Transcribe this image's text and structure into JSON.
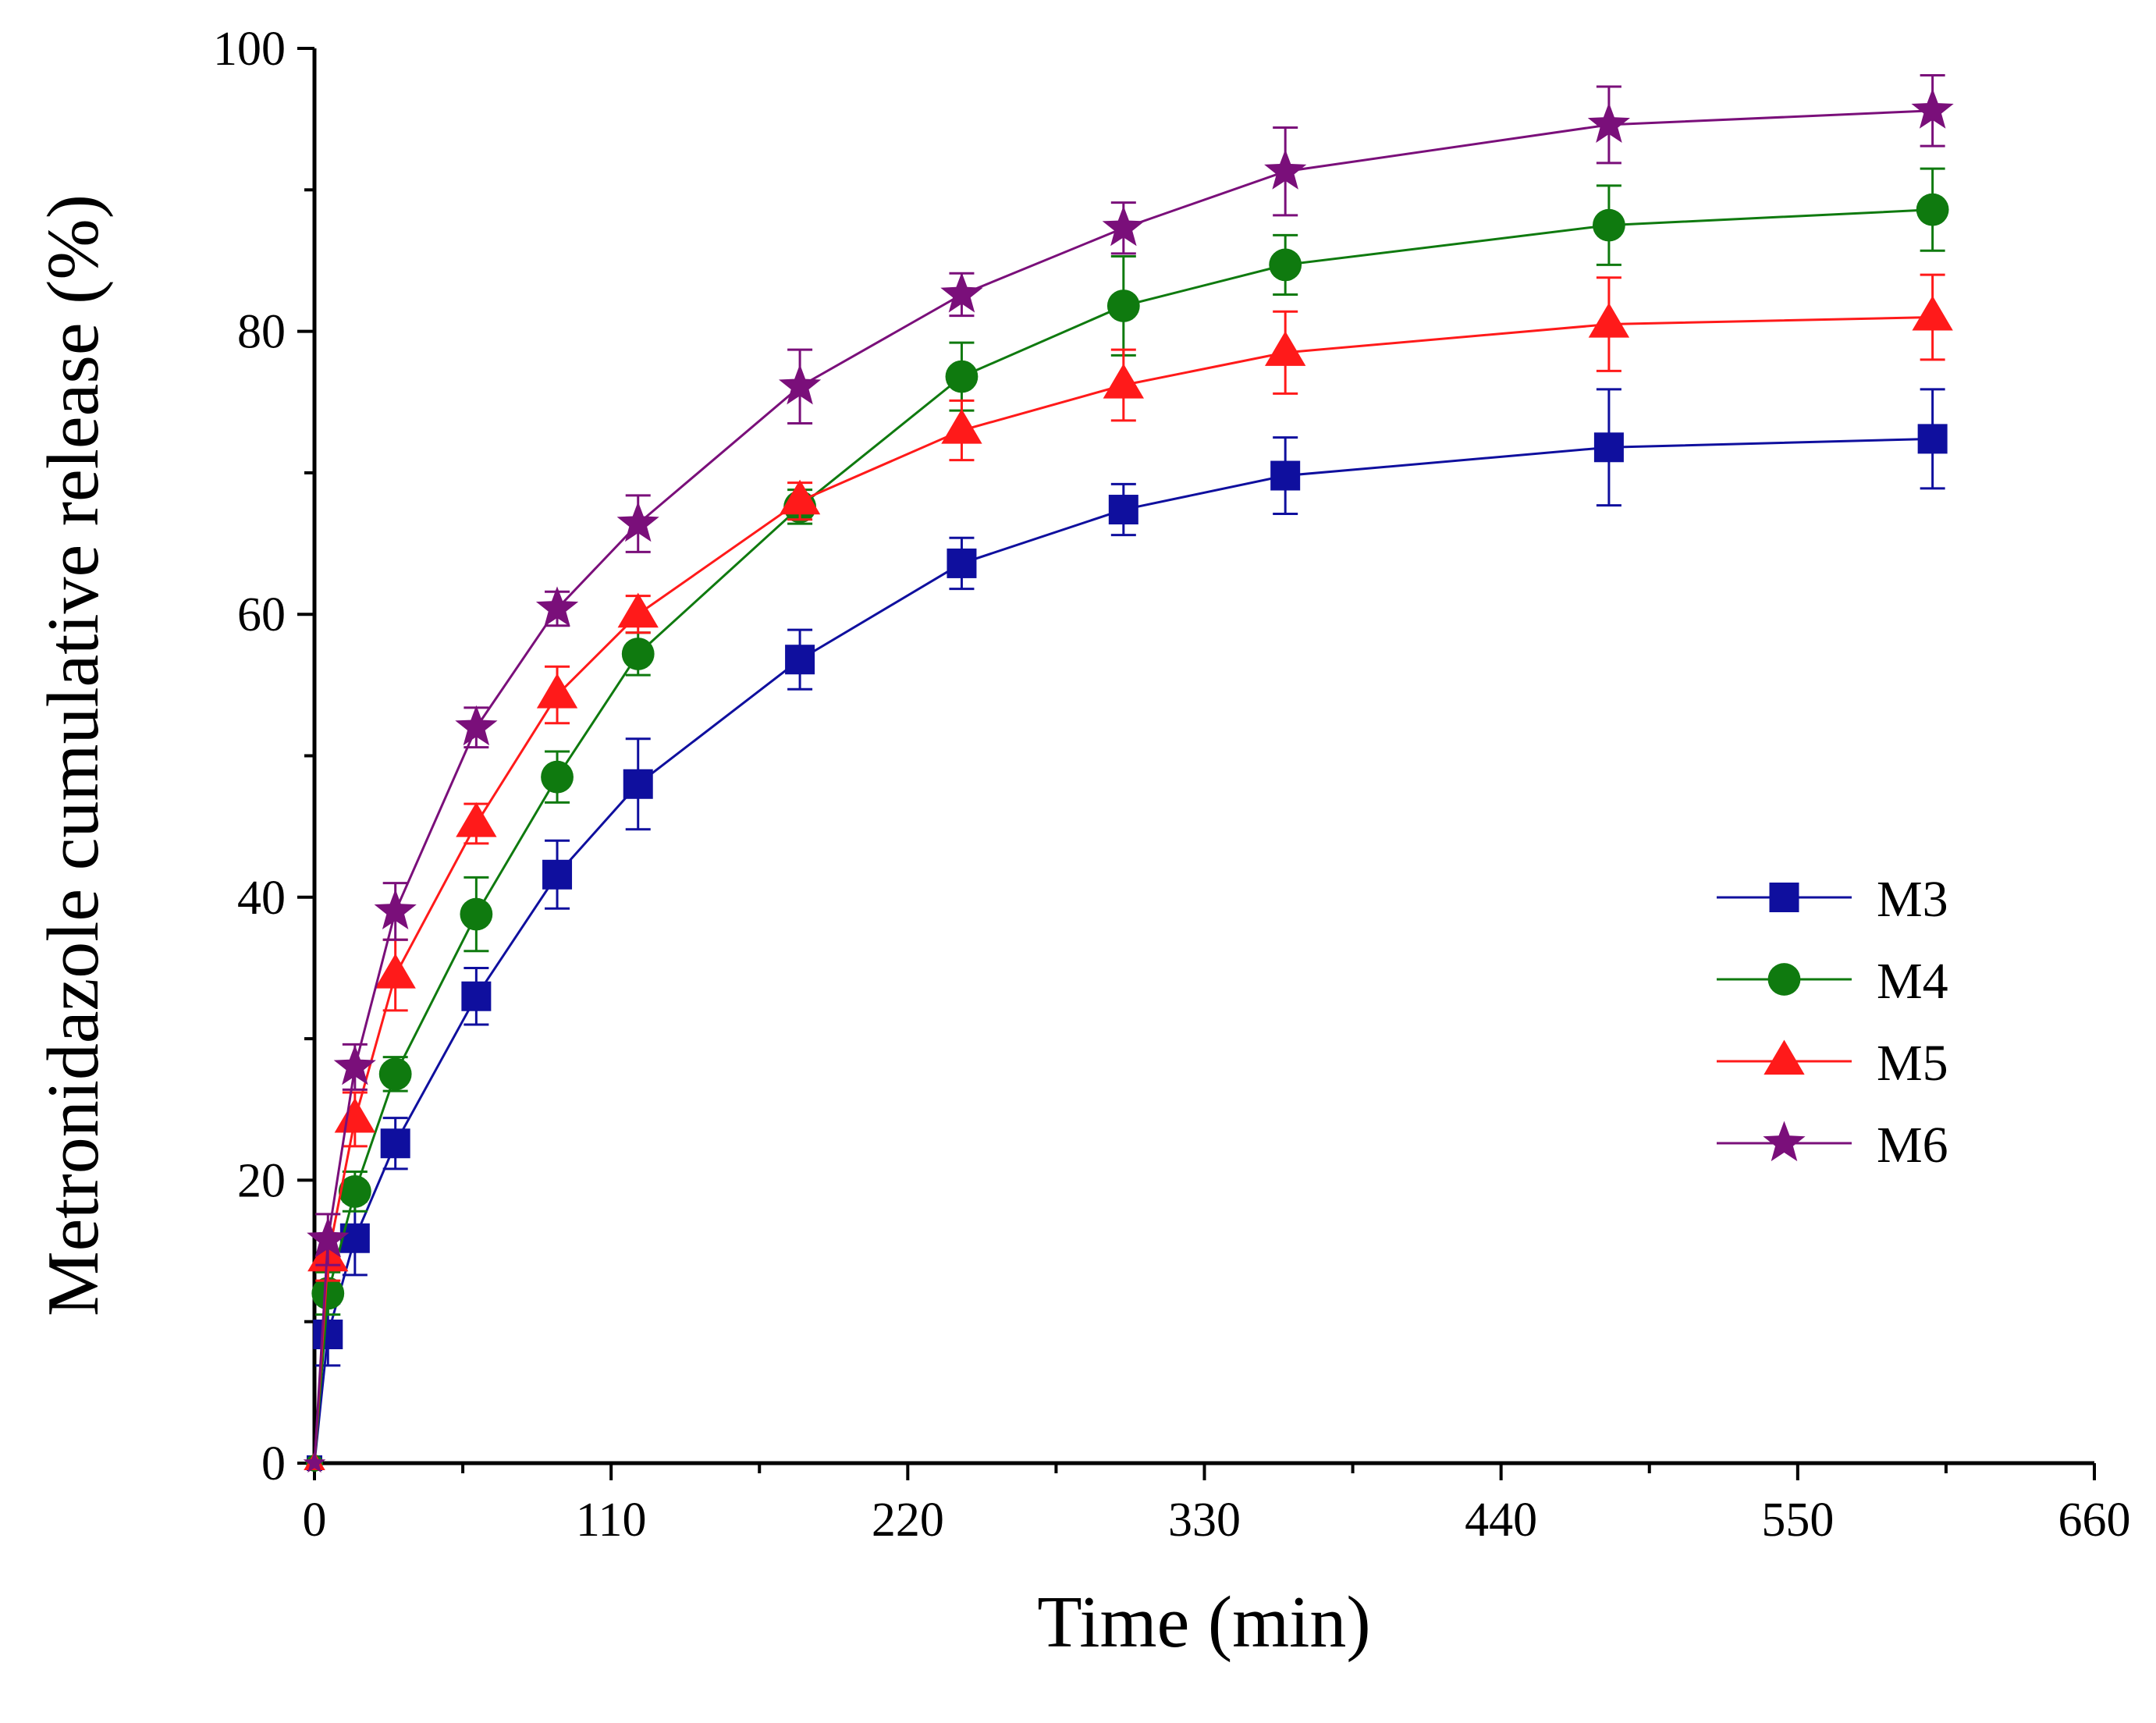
{
  "chart_data": {
    "type": "line",
    "title": "",
    "xlabel": "Time (min)",
    "ylabel": "Metronidazole cumulative release (%)",
    "xlim": [
      0,
      660
    ],
    "ylim": [
      0,
      100
    ],
    "xticks": [
      0,
      110,
      220,
      330,
      440,
      550,
      660
    ],
    "yticks": [
      0,
      20,
      40,
      60,
      80,
      100
    ],
    "x": [
      0,
      5,
      15,
      30,
      60,
      90,
      120,
      180,
      240,
      300,
      360,
      480,
      600
    ],
    "legend_position": "center-right",
    "series": [
      {
        "name": "M3",
        "color": "#0f0f9e",
        "marker": "square",
        "values": [
          0,
          9.1,
          15.9,
          22.6,
          33.0,
          41.6,
          48.0,
          56.8,
          63.6,
          67.4,
          69.8,
          71.8,
          72.4
        ],
        "errors": [
          0,
          2.2,
          2.6,
          1.8,
          2.0,
          2.4,
          3.2,
          2.1,
          1.8,
          1.8,
          2.7,
          4.1,
          3.5
        ]
      },
      {
        "name": "M4",
        "color": "#0f7a0f",
        "marker": "circle",
        "values": [
          0,
          12.0,
          19.2,
          27.5,
          38.8,
          48.5,
          57.2,
          67.6,
          76.8,
          81.8,
          84.7,
          87.5,
          88.6
        ],
        "errors": [
          0,
          1.5,
          1.4,
          1.2,
          2.6,
          1.8,
          1.5,
          1.2,
          2.4,
          3.5,
          2.1,
          2.8,
          2.9
        ]
      },
      {
        "name": "M5",
        "color": "#ff1a1a",
        "marker": "triangle",
        "values": [
          0,
          14.5,
          24.3,
          34.5,
          45.2,
          54.3,
          60.0,
          68.0,
          73.0,
          76.2,
          78.5,
          80.5,
          81.0
        ],
        "errors": [
          0,
          1.6,
          1.9,
          2.5,
          1.4,
          2.0,
          1.3,
          1.3,
          2.1,
          2.5,
          2.9,
          3.3,
          3.0
        ]
      },
      {
        "name": "M6",
        "color": "#7a0f7a",
        "marker": "star",
        "values": [
          0,
          15.8,
          28.0,
          39.0,
          52.0,
          60.4,
          66.4,
          76.1,
          82.6,
          87.3,
          91.3,
          94.6,
          95.6
        ],
        "errors": [
          0,
          1.8,
          1.6,
          2.0,
          1.4,
          1.2,
          2.0,
          2.6,
          1.5,
          1.8,
          3.1,
          2.7,
          2.5
        ]
      }
    ]
  }
}
